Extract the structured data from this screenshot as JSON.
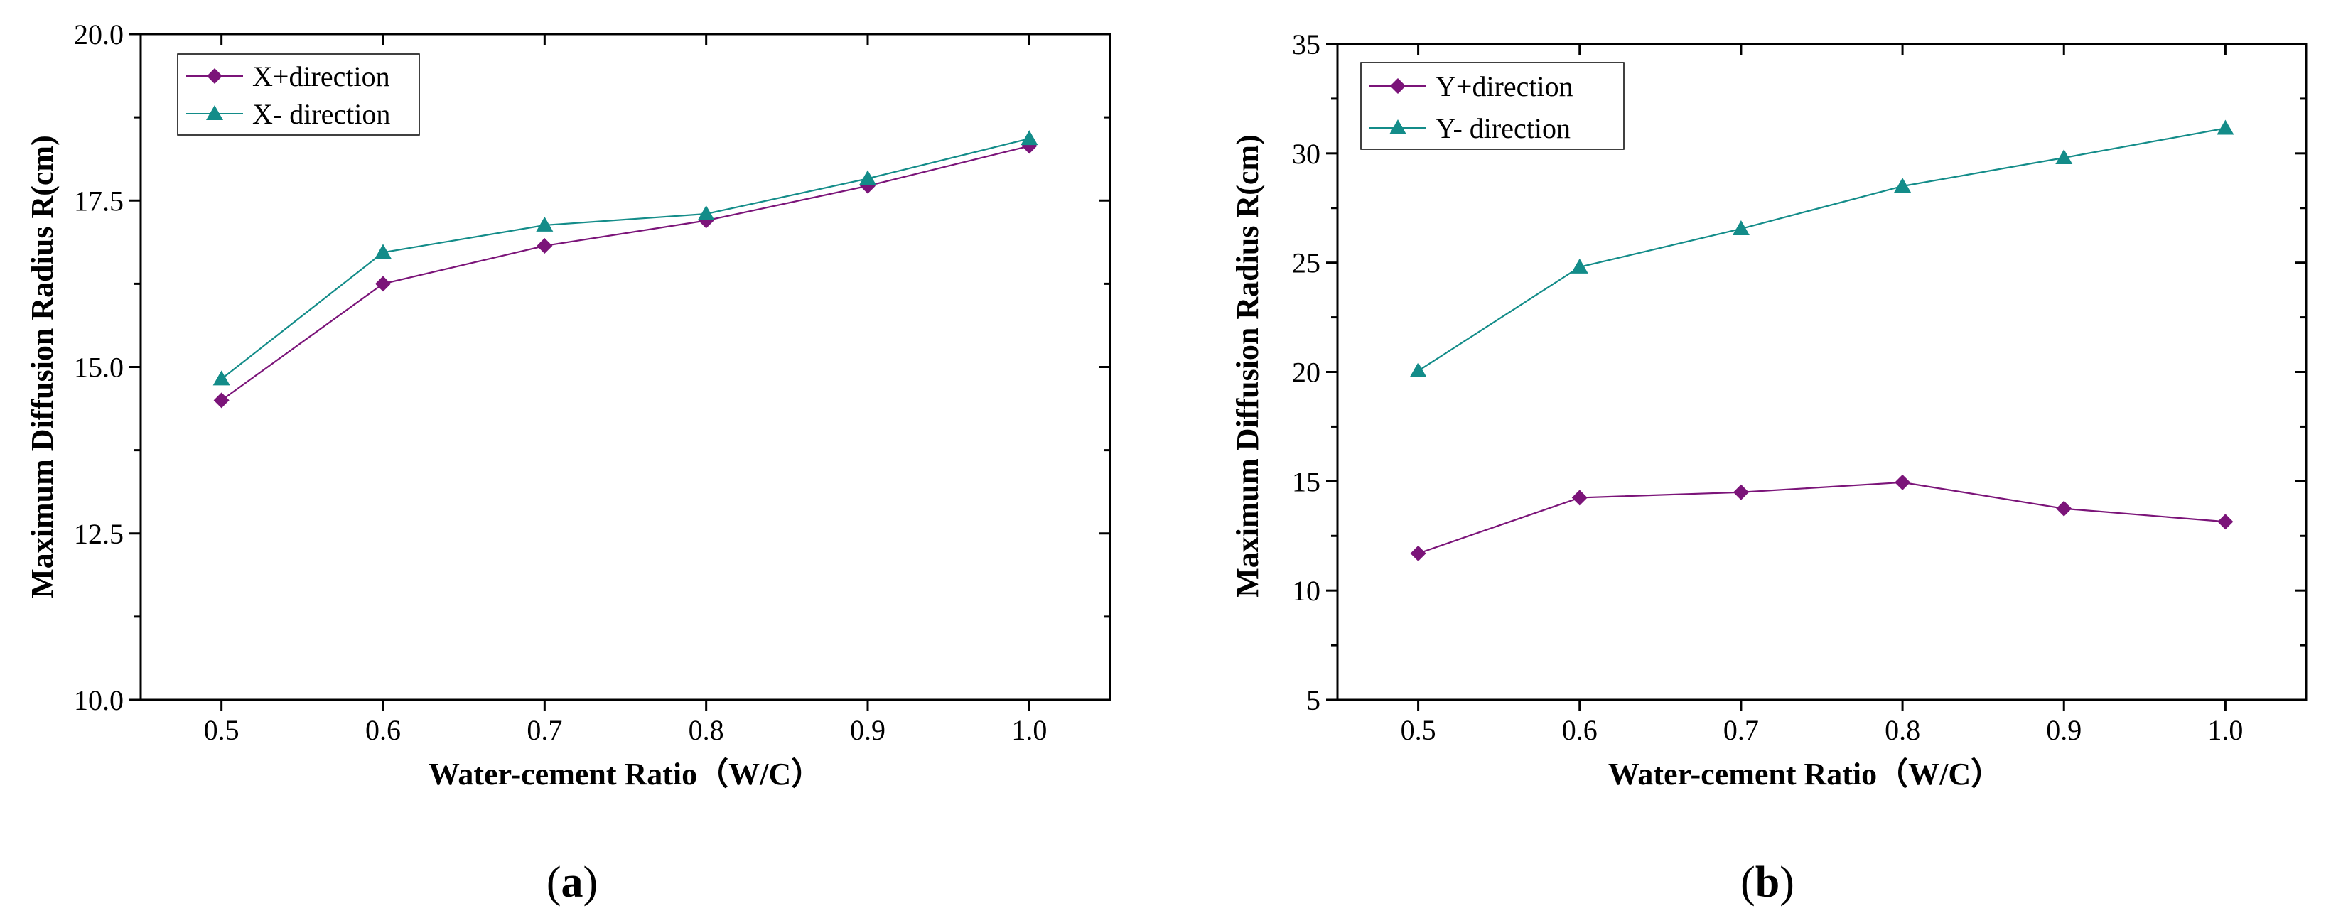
{
  "colors": {
    "series_plus": "#7b1479",
    "series_minus": "#138c89"
  },
  "chart_data": [
    {
      "type": "line",
      "panel_label": {
        "open": "(",
        "letter": "a",
        "close": ")"
      },
      "xlabel": "Water-cement Ratio（W/C）",
      "ylabel": "Maximum Diffusion Radius R(cm)",
      "x": [
        0.5,
        0.6,
        0.7,
        0.8,
        0.9,
        1.0
      ],
      "xlim": [
        0.45,
        1.05
      ],
      "ylim": [
        10.0,
        20.0
      ],
      "xticks": [
        "0.5",
        "0.6",
        "0.7",
        "0.8",
        "0.9",
        "1.0"
      ],
      "yticks": [
        "10.0",
        "12.5",
        "15.0",
        "17.5",
        "20.0"
      ],
      "ytick_values": [
        10.0,
        12.5,
        15.0,
        17.5,
        20.0
      ],
      "yminor_values": [
        11.25,
        13.75,
        16.25,
        18.75
      ],
      "legend_position": "top-left",
      "series": [
        {
          "name": "X+direction",
          "marker": "diamond",
          "color": "#7b1479",
          "values": [
            14.5,
            16.25,
            16.82,
            17.2,
            17.72,
            18.32
          ]
        },
        {
          "name": "X- direction",
          "marker": "triangle",
          "color": "#138c89",
          "values": [
            14.82,
            16.72,
            17.13,
            17.3,
            17.83,
            18.43
          ]
        }
      ]
    },
    {
      "type": "line",
      "panel_label": {
        "open": "(",
        "letter": "b",
        "close": ")"
      },
      "xlabel": "Water-cement Ratio（W/C）",
      "ylabel": "Maximum Diffusion Radius  R(cm)",
      "x": [
        0.5,
        0.6,
        0.7,
        0.8,
        0.9,
        1.0
      ],
      "xlim": [
        0.45,
        1.05
      ],
      "ylim": [
        5,
        35
      ],
      "xticks": [
        "0.5",
        "0.6",
        "0.7",
        "0.8",
        "0.9",
        "1.0"
      ],
      "yticks": [
        "5",
        "10",
        "15",
        "20",
        "25",
        "30",
        "35"
      ],
      "ytick_values": [
        5,
        10,
        15,
        20,
        25,
        30,
        35
      ],
      "yminor_values": [
        7.5,
        12.5,
        17.5,
        22.5,
        27.5,
        32.5
      ],
      "legend_position": "top-left",
      "series": [
        {
          "name": "Y+direction",
          "marker": "diamond",
          "color": "#7b1479",
          "values": [
            11.7,
            14.25,
            14.5,
            14.95,
            13.75,
            13.15
          ]
        },
        {
          "name": "Y- direction",
          "marker": "triangle",
          "color": "#138c89",
          "values": [
            20.05,
            24.8,
            26.55,
            28.5,
            29.8,
            31.15
          ]
        }
      ]
    }
  ]
}
